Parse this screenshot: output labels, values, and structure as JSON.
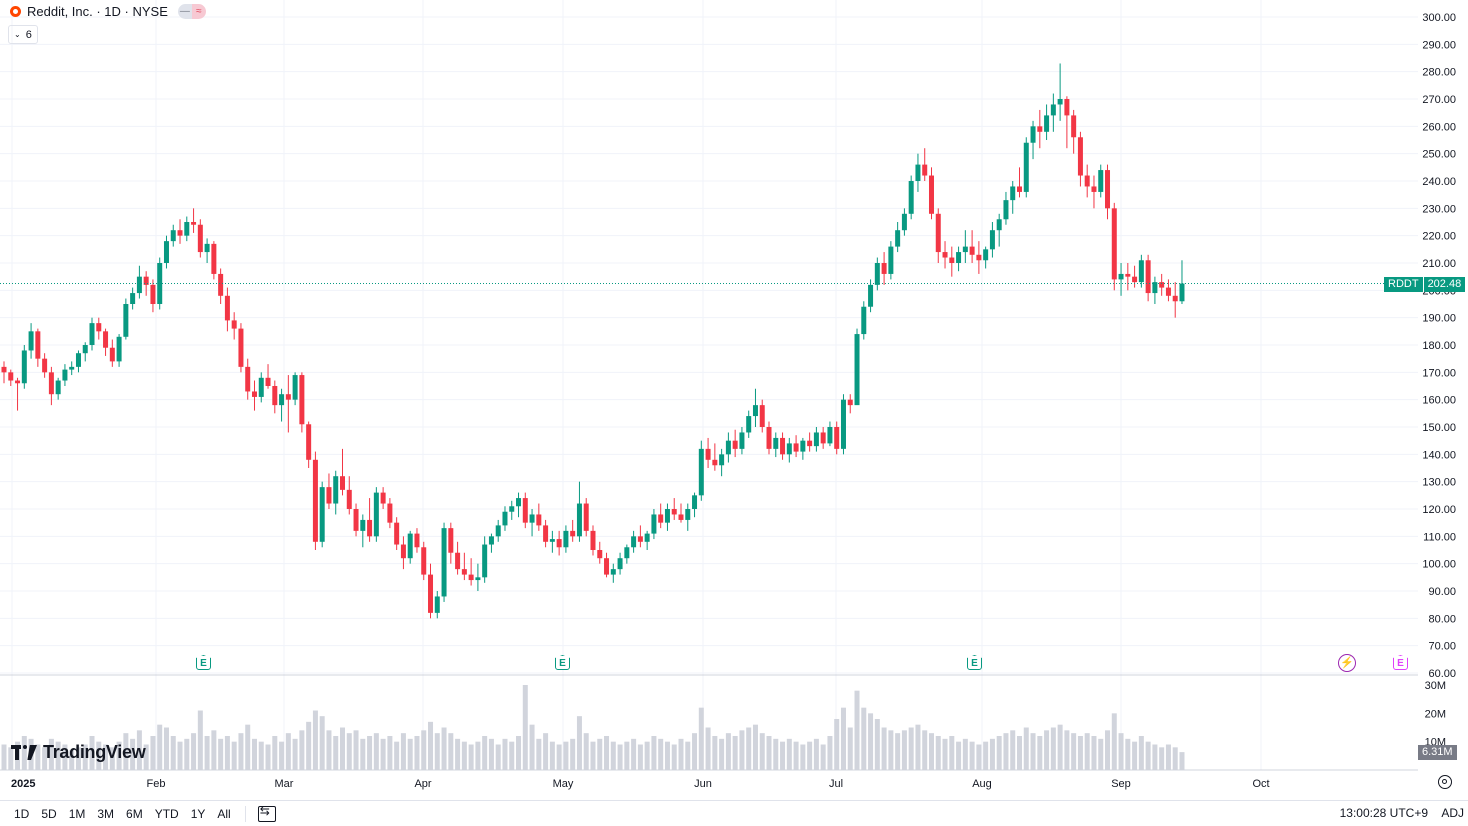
{
  "header": {
    "symbol_line": "Reddit, Inc. · 1D · NYSE",
    "indicator_count": "6"
  },
  "brand": {
    "name": "TradingView"
  },
  "time_ranges": [
    "1D",
    "5D",
    "1M",
    "3M",
    "6M",
    "YTD",
    "1Y",
    "All"
  ],
  "status": {
    "clock": "13:00:28 UTC+9",
    "adj": "ADJ"
  },
  "price_tag": {
    "symbol": "RDDT",
    "value": "202.48"
  },
  "volume_tag": "6.31M",
  "events": {
    "earnings_label": "E",
    "split_label": "⚡"
  },
  "colors": {
    "up": "#089981",
    "down": "#f23645",
    "volume": "#d1d4dc",
    "grid": "#f0f3fa",
    "last_price_line": "#089981"
  },
  "chart_data": {
    "type": "candlestick",
    "price_axis": {
      "min": 60,
      "max": 300,
      "ticks": [
        "60.00",
        "70.00",
        "80.00",
        "90.00",
        "100.00",
        "110.00",
        "120.00",
        "130.00",
        "140.00",
        "150.00",
        "160.00",
        "170.00",
        "180.00",
        "190.00",
        "200.00",
        "210.00",
        "220.00",
        "230.00",
        "240.00",
        "250.00",
        "260.00",
        "270.00",
        "280.00",
        "290.00",
        "300.00"
      ]
    },
    "volume_axis": {
      "min": 0,
      "max": 30000000,
      "ticks": [
        "10M",
        "20M",
        "30M"
      ]
    },
    "x_labels": [
      "2025",
      "Feb",
      "Mar",
      "Apr",
      "May",
      "Jun",
      "Jul",
      "Aug",
      "Sep",
      "Oct"
    ],
    "last_price": 202.48,
    "last_volume": 6310000,
    "series_ohlcv": [
      [
        172,
        174,
        166,
        170,
        9
      ],
      [
        170,
        171,
        165,
        167,
        8
      ],
      [
        167,
        168,
        156,
        166,
        10
      ],
      [
        166,
        180,
        164,
        178,
        12
      ],
      [
        178,
        188,
        175,
        185,
        11
      ],
      [
        185,
        186,
        172,
        175,
        9
      ],
      [
        175,
        177,
        168,
        170,
        8
      ],
      [
        170,
        172,
        158,
        162,
        11
      ],
      [
        162,
        168,
        160,
        167,
        10
      ],
      [
        167,
        173,
        165,
        171,
        9
      ],
      [
        171,
        174,
        169,
        172,
        7
      ],
      [
        172,
        178,
        170,
        177,
        8
      ],
      [
        177,
        181,
        174,
        180,
        9
      ],
      [
        180,
        190,
        178,
        188,
        12
      ],
      [
        188,
        190,
        182,
        185,
        10
      ],
      [
        185,
        186,
        176,
        179,
        9
      ],
      [
        179,
        182,
        172,
        174,
        8
      ],
      [
        174,
        184,
        172,
        183,
        10
      ],
      [
        183,
        197,
        182,
        195,
        13
      ],
      [
        195,
        201,
        193,
        199,
        11
      ],
      [
        199,
        209,
        197,
        205,
        14
      ],
      [
        205,
        207,
        198,
        202,
        9
      ],
      [
        202,
        204,
        192,
        195,
        12
      ],
      [
        195,
        212,
        193,
        210,
        16
      ],
      [
        210,
        220,
        208,
        218,
        15
      ],
      [
        218,
        224,
        216,
        222,
        12
      ],
      [
        222,
        226,
        217,
        220,
        10
      ],
      [
        220,
        227,
        218,
        225,
        11
      ],
      [
        225,
        230,
        221,
        224,
        13
      ],
      [
        224,
        226,
        212,
        214,
        21
      ],
      [
        214,
        219,
        210,
        217,
        12
      ],
      [
        217,
        218,
        204,
        206,
        14
      ],
      [
        206,
        208,
        195,
        198,
        11
      ],
      [
        198,
        201,
        185,
        189,
        12
      ],
      [
        189,
        192,
        182,
        186,
        10
      ],
      [
        186,
        188,
        170,
        172,
        13
      ],
      [
        172,
        175,
        160,
        163,
        16
      ],
      [
        163,
        167,
        156,
        161,
        11
      ],
      [
        161,
        170,
        159,
        168,
        10
      ],
      [
        168,
        173,
        164,
        165,
        9
      ],
      [
        165,
        167,
        155,
        158,
        12
      ],
      [
        158,
        164,
        152,
        162,
        10
      ],
      [
        162,
        169,
        148,
        160,
        13
      ],
      [
        160,
        170,
        158,
        169,
        11
      ],
      [
        169,
        170,
        148,
        151,
        14
      ],
      [
        151,
        152,
        135,
        138,
        17
      ],
      [
        138,
        141,
        105,
        108,
        21
      ],
      [
        108,
        130,
        106,
        128,
        19
      ],
      [
        128,
        133,
        120,
        122,
        14
      ],
      [
        122,
        134,
        118,
        132,
        12
      ],
      [
        132,
        142,
        125,
        127,
        15
      ],
      [
        127,
        132,
        118,
        120,
        13
      ],
      [
        120,
        122,
        110,
        112,
        14
      ],
      [
        112,
        118,
        106,
        116,
        11
      ],
      [
        116,
        124,
        108,
        110,
        12
      ],
      [
        110,
        128,
        108,
        126,
        13
      ],
      [
        126,
        128,
        120,
        122,
        11
      ],
      [
        122,
        124,
        113,
        115,
        12
      ],
      [
        115,
        117,
        105,
        107,
        10
      ],
      [
        107,
        110,
        98,
        102,
        13
      ],
      [
        102,
        112,
        100,
        111,
        11
      ],
      [
        111,
        113,
        104,
        106,
        12
      ],
      [
        106,
        108,
        94,
        96,
        14
      ],
      [
        96,
        100,
        80,
        82,
        17
      ],
      [
        82,
        90,
        80,
        88,
        13
      ],
      [
        88,
        115,
        86,
        113,
        15
      ],
      [
        113,
        115,
        100,
        104,
        13
      ],
      [
        104,
        108,
        96,
        98,
        11
      ],
      [
        98,
        104,
        94,
        96,
        10
      ],
      [
        96,
        102,
        92,
        94,
        9
      ],
      [
        94,
        100,
        90,
        95,
        10
      ],
      [
        95,
        110,
        93,
        107,
        12
      ],
      [
        107,
        111,
        104,
        110,
        11
      ],
      [
        110,
        116,
        108,
        114,
        9
      ],
      [
        114,
        121,
        112,
        119,
        11
      ],
      [
        119,
        123,
        116,
        121,
        10
      ],
      [
        121,
        126,
        117,
        124,
        12
      ],
      [
        124,
        126,
        113,
        115,
        30
      ],
      [
        115,
        120,
        110,
        118,
        16
      ],
      [
        118,
        122,
        112,
        114,
        11
      ],
      [
        114,
        116,
        106,
        108,
        13
      ],
      [
        108,
        112,
        104,
        109,
        10
      ],
      [
        109,
        112,
        103,
        106,
        9
      ],
      [
        106,
        114,
        104,
        112,
        10
      ],
      [
        112,
        116,
        108,
        110,
        11
      ],
      [
        110,
        130,
        108,
        122,
        19
      ],
      [
        122,
        124,
        110,
        112,
        13
      ],
      [
        112,
        114,
        103,
        105,
        10
      ],
      [
        105,
        108,
        100,
        102,
        11
      ],
      [
        102,
        104,
        95,
        96,
        12
      ],
      [
        96,
        100,
        93,
        98,
        10
      ],
      [
        98,
        104,
        96,
        102,
        9
      ],
      [
        102,
        107,
        100,
        106,
        10
      ],
      [
        106,
        112,
        104,
        110,
        11
      ],
      [
        110,
        114,
        106,
        108,
        9
      ],
      [
        108,
        112,
        105,
        111,
        10
      ],
      [
        111,
        120,
        109,
        118,
        12
      ],
      [
        118,
        122,
        113,
        115,
        11
      ],
      [
        115,
        122,
        112,
        120,
        10
      ],
      [
        120,
        124,
        116,
        118,
        9
      ],
      [
        118,
        122,
        115,
        116,
        11
      ],
      [
        116,
        122,
        112,
        120,
        10
      ],
      [
        120,
        126,
        117,
        125,
        13
      ],
      [
        125,
        145,
        123,
        142,
        22
      ],
      [
        142,
        146,
        135,
        138,
        15
      ],
      [
        138,
        144,
        134,
        136,
        12
      ],
      [
        136,
        142,
        132,
        140,
        11
      ],
      [
        140,
        148,
        137,
        145,
        13
      ],
      [
        145,
        149,
        139,
        142,
        12
      ],
      [
        142,
        150,
        140,
        148,
        14
      ],
      [
        148,
        156,
        146,
        154,
        15
      ],
      [
        154,
        164,
        150,
        158,
        16
      ],
      [
        158,
        160,
        148,
        150,
        13
      ],
      [
        150,
        152,
        140,
        142,
        12
      ],
      [
        142,
        148,
        139,
        146,
        11
      ],
      [
        146,
        148,
        138,
        140,
        10
      ],
      [
        140,
        146,
        137,
        144,
        11
      ],
      [
        144,
        147,
        139,
        141,
        10
      ],
      [
        141,
        146,
        138,
        145,
        9
      ],
      [
        145,
        148,
        141,
        143,
        10
      ],
      [
        143,
        150,
        141,
        148,
        11
      ],
      [
        148,
        150,
        142,
        144,
        9
      ],
      [
        144,
        152,
        143,
        150,
        12
      ],
      [
        150,
        152,
        140,
        142,
        18
      ],
      [
        142,
        162,
        140,
        160,
        22
      ],
      [
        160,
        162,
        155,
        158,
        15
      ],
      [
        158,
        186,
        178,
        184,
        28
      ],
      [
        184,
        196,
        182,
        194,
        22
      ],
      [
        194,
        204,
        192,
        202,
        20
      ],
      [
        202,
        212,
        200,
        210,
        18
      ],
      [
        210,
        214,
        202,
        206,
        15
      ],
      [
        206,
        218,
        204,
        216,
        14
      ],
      [
        216,
        225,
        214,
        222,
        13
      ],
      [
        222,
        230,
        220,
        228,
        14
      ],
      [
        228,
        242,
        226,
        240,
        15
      ],
      [
        240,
        250,
        236,
        246,
        16
      ],
      [
        246,
        252,
        240,
        242,
        14
      ],
      [
        242,
        245,
        226,
        228,
        13
      ],
      [
        228,
        230,
        210,
        214,
        12
      ],
      [
        214,
        218,
        208,
        212,
        11
      ],
      [
        212,
        216,
        205,
        210,
        12
      ],
      [
        210,
        216,
        207,
        214,
        10
      ],
      [
        214,
        222,
        210,
        216,
        11
      ],
      [
        216,
        222,
        210,
        213,
        10
      ],
      [
        213,
        218,
        206,
        211,
        9
      ],
      [
        211,
        216,
        208,
        215,
        10
      ],
      [
        215,
        225,
        212,
        222,
        11
      ],
      [
        222,
        228,
        216,
        226,
        12
      ],
      [
        226,
        236,
        224,
        233,
        13
      ],
      [
        233,
        240,
        228,
        238,
        14
      ],
      [
        238,
        245,
        234,
        236,
        12
      ],
      [
        236,
        256,
        234,
        254,
        15
      ],
      [
        254,
        262,
        248,
        260,
        13
      ],
      [
        260,
        266,
        252,
        258,
        12
      ],
      [
        258,
        268,
        255,
        264,
        14
      ],
      [
        264,
        272,
        258,
        268,
        15
      ],
      [
        268,
        283,
        262,
        270,
        16
      ],
      [
        270,
        271,
        252,
        264,
        14
      ],
      [
        264,
        266,
        250,
        256,
        13
      ],
      [
        256,
        258,
        238,
        242,
        12
      ],
      [
        242,
        246,
        234,
        238,
        13
      ],
      [
        238,
        242,
        230,
        236,
        12
      ],
      [
        236,
        246,
        234,
        244,
        11
      ],
      [
        244,
        246,
        226,
        230,
        14
      ],
      [
        230,
        232,
        200,
        204,
        20
      ],
      [
        204,
        210,
        198,
        206,
        13
      ],
      [
        206,
        210,
        200,
        205,
        11
      ],
      [
        205,
        209,
        201,
        203,
        10
      ],
      [
        203,
        213,
        201,
        211,
        12
      ],
      [
        211,
        213,
        196,
        199,
        10
      ],
      [
        199,
        205,
        195,
        203,
        9
      ],
      [
        203,
        206,
        198,
        201,
        8
      ],
      [
        201,
        204,
        196,
        198,
        9
      ],
      [
        198,
        203,
        190,
        196,
        8
      ],
      [
        196,
        211,
        195,
        202.48,
        6.31
      ]
    ]
  }
}
